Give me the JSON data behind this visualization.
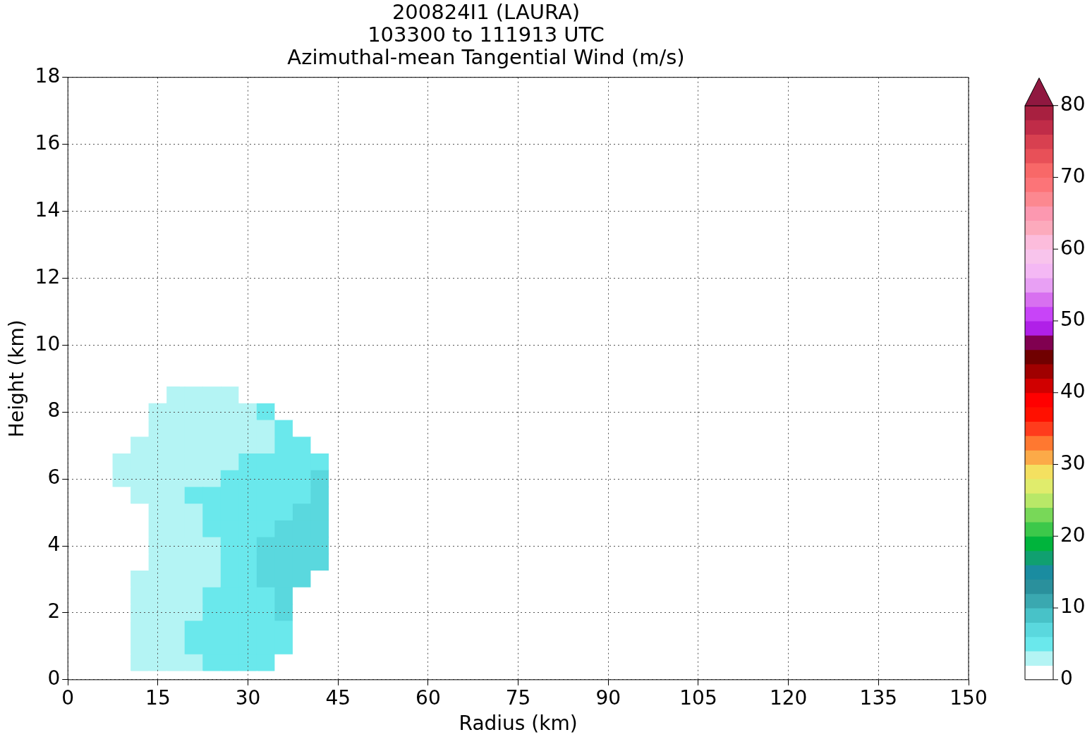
{
  "chart_data": {
    "type": "heatmap",
    "title": "200824I1 (LAURA)\n103300 to 111913 UTC\nAzimuthal-mean Tangential Wind (m/s)",
    "xlabel": "Radius (km)",
    "ylabel": "Height (km)",
    "grid": true,
    "clim": [
      0,
      80
    ],
    "cticks": [
      0,
      10,
      20,
      30,
      40,
      50,
      60,
      70,
      80
    ],
    "categories": [
      "0",
      null,
      null,
      null,
      null,
      "15",
      null,
      null,
      null,
      null,
      "30",
      null,
      null,
      null,
      null,
      "45",
      null,
      null,
      null,
      null,
      "60",
      null,
      null,
      null,
      null,
      "75",
      null,
      null,
      null,
      null,
      "90",
      null,
      null,
      null,
      null,
      "105",
      null,
      null,
      null,
      null,
      "120",
      null,
      null,
      null,
      null,
      "135",
      null,
      null,
      null,
      null,
      "150"
    ],
    "y_categories": [
      "18",
      null,
      null,
      null,
      "16",
      null,
      null,
      null,
      "14",
      null,
      null,
      null,
      "12",
      null,
      null,
      null,
      "10",
      null,
      null,
      null,
      "8",
      null,
      null,
      null,
      "6",
      null,
      null,
      null,
      "4",
      null,
      null,
      null,
      "2",
      null,
      null,
      null,
      "0"
    ],
    "cells": [
      [
        1,
        1,
        1,
        1,
        1,
        1,
        1,
        1,
        1,
        1,
        1,
        1,
        1,
        1,
        1,
        1,
        1,
        1,
        1,
        1,
        1,
        1,
        1,
        1,
        1,
        1,
        1,
        1,
        1,
        1,
        1,
        1,
        1,
        1,
        1,
        1,
        1,
        1,
        1,
        1,
        1,
        1,
        1,
        1,
        1,
        1,
        1,
        1,
        1,
        1,
        1
      ],
      [
        1,
        1,
        1,
        1,
        1,
        1,
        1,
        1,
        1,
        1,
        1,
        1,
        1,
        1,
        1,
        1,
        1,
        1,
        1,
        1,
        1,
        1,
        1,
        1,
        1,
        1,
        1,
        1,
        1,
        1,
        1,
        1,
        1,
        1,
        1,
        1,
        1,
        1,
        1,
        1,
        1,
        1,
        1,
        1,
        1,
        1,
        1,
        1,
        1,
        1,
        1
      ],
      [
        1,
        1,
        1,
        1,
        1,
        1,
        1,
        1,
        1,
        1,
        1,
        1,
        1,
        1,
        1,
        1,
        1,
        1,
        1,
        1,
        1,
        1,
        1,
        1,
        1,
        1,
        1,
        1,
        1,
        1,
        1,
        1,
        1,
        1,
        1,
        1,
        1,
        1,
        1,
        1,
        1,
        1,
        1,
        1,
        1,
        1,
        1,
        1,
        1,
        1,
        1
      ],
      [
        1,
        1,
        1,
        1,
        1,
        1,
        1,
        1,
        1,
        1,
        1,
        1,
        1,
        1,
        1,
        1,
        1,
        1,
        1,
        1,
        1,
        1,
        1,
        1,
        1,
        1,
        1,
        1,
        1,
        1,
        1,
        1,
        1,
        1,
        1,
        1,
        1,
        1,
        1,
        1,
        1,
        1,
        1,
        1,
        1,
        1,
        1,
        1,
        1,
        1,
        1
      ],
      [
        1,
        1,
        1,
        1,
        1,
        1,
        1,
        1,
        1,
        1,
        1,
        1,
        1,
        1,
        1,
        1,
        1,
        1,
        1,
        1,
        1,
        1,
        1,
        1,
        1,
        1,
        1,
        1,
        1,
        1,
        1,
        1,
        1,
        1,
        1,
        1,
        1,
        1,
        1,
        1,
        1,
        1,
        1,
        1,
        1,
        1,
        1,
        1,
        1,
        1,
        1
      ],
      [
        1,
        1,
        1,
        1,
        1,
        1,
        1,
        1,
        1,
        1,
        1,
        1,
        1,
        1,
        1,
        1,
        1,
        1,
        1,
        1,
        1,
        1,
        1,
        1,
        1,
        1,
        1,
        1,
        1,
        1,
        1,
        1,
        1,
        1,
        1,
        1,
        1,
        1,
        1,
        1,
        1,
        1,
        1,
        1,
        1,
        1,
        1,
        1,
        1,
        1,
        1
      ],
      [
        1,
        1,
        1,
        1,
        1,
        1,
        1,
        1,
        1,
        1,
        1,
        1,
        1,
        1,
        1,
        1,
        1,
        1,
        1,
        1,
        1,
        1,
        1,
        1,
        1,
        1,
        1,
        1,
        1,
        1,
        1,
        1,
        1,
        1,
        1,
        1,
        1,
        1,
        1,
        1,
        1,
        1,
        1,
        1,
        1,
        1,
        1,
        1,
        1,
        1,
        1
      ],
      [
        1,
        1,
        1,
        1,
        1,
        1,
        1,
        1,
        1,
        1,
        1,
        1,
        1,
        1,
        1,
        1,
        1,
        1,
        1,
        1,
        1,
        1,
        1,
        1,
        1,
        1,
        1,
        1,
        1,
        1,
        1,
        1,
        1,
        1,
        1,
        1,
        1,
        1,
        1,
        1,
        1,
        1,
        1,
        1,
        1,
        1,
        1,
        1,
        1,
        1,
        1
      ],
      [
        1,
        1,
        1,
        1,
        1,
        1,
        1,
        1,
        1,
        1,
        1,
        1,
        1,
        1,
        1,
        1,
        1,
        1,
        1,
        1,
        1,
        1,
        1,
        1,
        1,
        1,
        1,
        1,
        1,
        1,
        1,
        1,
        1,
        1,
        1,
        1,
        1,
        1,
        1,
        1,
        1,
        1,
        1,
        1,
        1,
        1,
        1,
        1,
        1,
        1,
        1
      ],
      [
        1,
        1,
        1,
        1,
        1,
        1,
        1,
        1,
        1,
        1,
        1,
        1,
        1,
        1,
        1,
        1,
        1,
        1,
        1,
        1,
        1,
        1,
        1,
        1,
        1,
        1,
        1,
        1,
        1,
        1,
        1,
        1,
        1,
        1,
        1,
        1,
        1,
        1,
        1,
        1,
        1,
        1,
        1,
        1,
        1,
        1,
        1,
        1,
        1,
        1,
        1
      ],
      [
        1,
        1,
        1,
        1,
        1,
        1,
        1,
        1,
        1,
        1,
        1,
        1,
        1,
        1,
        1,
        1,
        1,
        1,
        1,
        1,
        1,
        1,
        1,
        1,
        1,
        1,
        1,
        1,
        1,
        1,
        1,
        1,
        1,
        1,
        1,
        1,
        1,
        1,
        1,
        1,
        1,
        1,
        1,
        1,
        1,
        1,
        1,
        1,
        1,
        1,
        1
      ],
      [
        1,
        1,
        1,
        1,
        1,
        1,
        1,
        1,
        1,
        1,
        1,
        1,
        1,
        1,
        1,
        1,
        1,
        1,
        1,
        1,
        1,
        1,
        1,
        1,
        1,
        1,
        1,
        1,
        1,
        1,
        1,
        1,
        1,
        1,
        1,
        1,
        1,
        1,
        1,
        1,
        1,
        1,
        1,
        1,
        1,
        1,
        1,
        1,
        1,
        1,
        1
      ],
      [
        1,
        1,
        1,
        1,
        1,
        1,
        1,
        1,
        1,
        1,
        1,
        1,
        1,
        1,
        1,
        1,
        1,
        1,
        1,
        1,
        1,
        1,
        1,
        1,
        1,
        1,
        1,
        1,
        1,
        1,
        1,
        1,
        1,
        1,
        1,
        1,
        1,
        1,
        1,
        1,
        1,
        1,
        1,
        1,
        1,
        1,
        1,
        1,
        1,
        1,
        1
      ],
      [
        1,
        1,
        1,
        1,
        1,
        1,
        1,
        1,
        1,
        1,
        1,
        1,
        1,
        1,
        1,
        1,
        1,
        1,
        1,
        1,
        1,
        1,
        1,
        1,
        1,
        1,
        1,
        1,
        1,
        1,
        1,
        1,
        1,
        1,
        1,
        1,
        1,
        1,
        1,
        1,
        1,
        1,
        1,
        1,
        1,
        1,
        1,
        1,
        1,
        1,
        1
      ],
      [
        1,
        1,
        1,
        1,
        1,
        1,
        1,
        1,
        1,
        1,
        1,
        1,
        1,
        1,
        1,
        1,
        1,
        1,
        1,
        1,
        1,
        1,
        1,
        1,
        1,
        1,
        1,
        1,
        1,
        1,
        1,
        1,
        1,
        1,
        1,
        1,
        1,
        1,
        1,
        1,
        1,
        1,
        1,
        1,
        1,
        1,
        1,
        1,
        1,
        1,
        1
      ],
      [
        1,
        1,
        1,
        1,
        1,
        1,
        1,
        1,
        1,
        1,
        1,
        1,
        1,
        1,
        1,
        1,
        1,
        1,
        1,
        1,
        1,
        1,
        1,
        1,
        1,
        1,
        1,
        1,
        1,
        1,
        1,
        1,
        1,
        1,
        1,
        1,
        1,
        1,
        1,
        1,
        1,
        1,
        1,
        1,
        1,
        1,
        1,
        1,
        1,
        1,
        1
      ],
      [
        1,
        1,
        1,
        1,
        1,
        1,
        1,
        1,
        1,
        1,
        1,
        1,
        1,
        1,
        1,
        1,
        1,
        1,
        1,
        1,
        1,
        1,
        1,
        1,
        1,
        1,
        1,
        1,
        1,
        1,
        1,
        1,
        1,
        1,
        1,
        1,
        1,
        1,
        1,
        1,
        1,
        1,
        1,
        1,
        1,
        1,
        1,
        1,
        1,
        1,
        1
      ],
      [
        1,
        1,
        1,
        1,
        1,
        1,
        1,
        1,
        1,
        1,
        1,
        1,
        1,
        1,
        1,
        1,
        1,
        1,
        1,
        1,
        1,
        1,
        1,
        1,
        1,
        1,
        1,
        1,
        1,
        1,
        1,
        1,
        1,
        1,
        1,
        1,
        1,
        1,
        1,
        1,
        1,
        1,
        1,
        1,
        1,
        1,
        1,
        1,
        1,
        1,
        1
      ],
      [
        1,
        1,
        1,
        1,
        1,
        1,
        1,
        1,
        1,
        1,
        1,
        1,
        1,
        1,
        1,
        1,
        1,
        1,
        1,
        1,
        1,
        1,
        1,
        1,
        1,
        1,
        1,
        1,
        1,
        1,
        1,
        1,
        1,
        1,
        1,
        1,
        1,
        1,
        1,
        1,
        1,
        1,
        1,
        1,
        1,
        1,
        1,
        1,
        1,
        1,
        1
      ],
      [
        1,
        1,
        1,
        1,
        1,
        1,
        3,
        3,
        3,
        3,
        1,
        1,
        1,
        1,
        1,
        1,
        1,
        1,
        1,
        1,
        1,
        1,
        1,
        1,
        1,
        1,
        1,
        1,
        1,
        1,
        1,
        1,
        1,
        1,
        1,
        1,
        1,
        1,
        1,
        1,
        1,
        1,
        1,
        1,
        1,
        1,
        1,
        1,
        1,
        1,
        1
      ],
      [
        1,
        1,
        1,
        1,
        1,
        3,
        3,
        3,
        3,
        3,
        3,
        5,
        1,
        1,
        1,
        1,
        1,
        1,
        1,
        1,
        1,
        1,
        1,
        1,
        1,
        1,
        1,
        1,
        1,
        1,
        1,
        1,
        1,
        1,
        1,
        1,
        1,
        1,
        1,
        1,
        1,
        1,
        1,
        1,
        1,
        1,
        1,
        1,
        1,
        1,
        1
      ],
      [
        1,
        1,
        1,
        1,
        1,
        3,
        3,
        3,
        3,
        3,
        3,
        3,
        5,
        1,
        1,
        1,
        1,
        1,
        1,
        1,
        1,
        1,
        1,
        1,
        1,
        1,
        1,
        1,
        1,
        1,
        1,
        1,
        1,
        1,
        1,
        1,
        1,
        1,
        1,
        1,
        1,
        1,
        1,
        1,
        1,
        1,
        1,
        1,
        1,
        1,
        1
      ],
      [
        1,
        1,
        1,
        1,
        3,
        3,
        3,
        3,
        3,
        3,
        3,
        3,
        5,
        5,
        1,
        1,
        1,
        1,
        1,
        1,
        1,
        1,
        1,
        1,
        1,
        1,
        1,
        1,
        1,
        1,
        1,
        1,
        1,
        1,
        1,
        1,
        1,
        1,
        1,
        1,
        1,
        1,
        1,
        1,
        1,
        1,
        1,
        1,
        1,
        1,
        1
      ],
      [
        1,
        1,
        1,
        3,
        3,
        3,
        3,
        3,
        3,
        3,
        5,
        5,
        5,
        5,
        5,
        1,
        1,
        1,
        1,
        1,
        1,
        1,
        1,
        1,
        1,
        1,
        1,
        1,
        1,
        1,
        1,
        1,
        1,
        1,
        1,
        1,
        1,
        1,
        1,
        1,
        1,
        1,
        1,
        1,
        1,
        1,
        1,
        1,
        1,
        1,
        1
      ],
      [
        1,
        1,
        1,
        3,
        3,
        3,
        3,
        3,
        3,
        5,
        5,
        5,
        5,
        5,
        7,
        1,
        1,
        1,
        1,
        1,
        1,
        1,
        1,
        1,
        1,
        1,
        1,
        1,
        1,
        1,
        1,
        1,
        1,
        1,
        1,
        1,
        1,
        1,
        1,
        1,
        1,
        1,
        1,
        1,
        1,
        1,
        1,
        1,
        1,
        1,
        1
      ],
      [
        1,
        1,
        1,
        1,
        3,
        3,
        3,
        5,
        5,
        5,
        5,
        5,
        5,
        5,
        7,
        1,
        1,
        1,
        1,
        1,
        1,
        1,
        1,
        1,
        1,
        1,
        1,
        1,
        1,
        1,
        1,
        1,
        1,
        1,
        1,
        1,
        1,
        1,
        1,
        1,
        1,
        1,
        1,
        1,
        1,
        1,
        1,
        1,
        1,
        1,
        1
      ],
      [
        1,
        1,
        1,
        1,
        1,
        3,
        3,
        3,
        5,
        5,
        5,
        5,
        5,
        7,
        7,
        1,
        1,
        1,
        1,
        1,
        1,
        1,
        1,
        1,
        1,
        1,
        1,
        1,
        1,
        1,
        1,
        1,
        1,
        1,
        1,
        1,
        1,
        1,
        1,
        1,
        1,
        1,
        1,
        1,
        1,
        1,
        1,
        1,
        1,
        1,
        1
      ],
      [
        1,
        1,
        1,
        1,
        1,
        3,
        3,
        3,
        5,
        5,
        5,
        5,
        7,
        7,
        7,
        1,
        1,
        1,
        1,
        1,
        1,
        1,
        1,
        1,
        1,
        1,
        1,
        1,
        1,
        1,
        1,
        1,
        1,
        1,
        1,
        1,
        1,
        1,
        1,
        1,
        1,
        1,
        1,
        1,
        1,
        1,
        1,
        1,
        1,
        1,
        1
      ],
      [
        1,
        1,
        1,
        1,
        1,
        3,
        3,
        3,
        3,
        5,
        5,
        7,
        7,
        7,
        7,
        1,
        1,
        1,
        1,
        1,
        1,
        1,
        1,
        1,
        1,
        1,
        1,
        1,
        1,
        1,
        1,
        1,
        1,
        1,
        1,
        1,
        1,
        1,
        1,
        1,
        1,
        1,
        1,
        1,
        1,
        1,
        1,
        1,
        1,
        1,
        1
      ],
      [
        1,
        1,
        1,
        1,
        1,
        3,
        3,
        3,
        3,
        5,
        5,
        7,
        7,
        7,
        7,
        1,
        1,
        1,
        1,
        1,
        1,
        1,
        1,
        1,
        1,
        1,
        1,
        1,
        1,
        1,
        1,
        1,
        1,
        1,
        1,
        1,
        1,
        1,
        1,
        1,
        1,
        1,
        1,
        1,
        1,
        1,
        1,
        1,
        1,
        1,
        1
      ],
      [
        1,
        1,
        1,
        1,
        3,
        3,
        3,
        3,
        3,
        5,
        5,
        7,
        7,
        7,
        1,
        1,
        1,
        1,
        1,
        1,
        1,
        1,
        1,
        1,
        1,
        1,
        1,
        1,
        1,
        1,
        1,
        1,
        1,
        1,
        1,
        1,
        1,
        1,
        1,
        1,
        1,
        1,
        1,
        1,
        1,
        1,
        1,
        1,
        1,
        1,
        1
      ],
      [
        1,
        1,
        1,
        1,
        3,
        3,
        3,
        3,
        5,
        5,
        5,
        5,
        7,
        1,
        1,
        1,
        1,
        1,
        1,
        1,
        1,
        1,
        1,
        1,
        1,
        1,
        1,
        1,
        1,
        1,
        1,
        1,
        1,
        1,
        1,
        1,
        1,
        1,
        1,
        1,
        1,
        1,
        1,
        1,
        1,
        1,
        1,
        1,
        1,
        1,
        1
      ],
      [
        1,
        1,
        1,
        1,
        3,
        3,
        3,
        3,
        5,
        5,
        5,
        5,
        7,
        1,
        1,
        1,
        1,
        1,
        1,
        1,
        1,
        1,
        1,
        1,
        1,
        1,
        1,
        1,
        1,
        1,
        1,
        1,
        1,
        1,
        1,
        1,
        1,
        1,
        1,
        1,
        1,
        1,
        1,
        1,
        1,
        1,
        1,
        1,
        1,
        1,
        1
      ],
      [
        1,
        1,
        1,
        1,
        3,
        3,
        3,
        5,
        5,
        5,
        5,
        5,
        5,
        1,
        1,
        1,
        1,
        1,
        1,
        1,
        1,
        1,
        1,
        1,
        1,
        1,
        1,
        1,
        1,
        1,
        1,
        1,
        1,
        1,
        1,
        1,
        1,
        1,
        1,
        1,
        1,
        1,
        1,
        1,
        1,
        1,
        1,
        1,
        1,
        1,
        1
      ],
      [
        1,
        1,
        1,
        1,
        3,
        3,
        3,
        5,
        5,
        5,
        5,
        5,
        5,
        1,
        1,
        1,
        1,
        1,
        1,
        1,
        1,
        1,
        1,
        1,
        1,
        1,
        1,
        1,
        1,
        1,
        1,
        1,
        1,
        1,
        1,
        1,
        1,
        1,
        1,
        1,
        1,
        1,
        1,
        1,
        1,
        1,
        1,
        1,
        1,
        1,
        1
      ],
      [
        1,
        1,
        1,
        1,
        3,
        3,
        3,
        3,
        5,
        5,
        5,
        5,
        1,
        1,
        1,
        1,
        1,
        1,
        1,
        1,
        1,
        1,
        1,
        1,
        1,
        1,
        1,
        1,
        1,
        1,
        1,
        1,
        1,
        1,
        1,
        1,
        1,
        1,
        1,
        1,
        1,
        1,
        1,
        1,
        1,
        1,
        1,
        1,
        1,
        1,
        1
      ],
      [
        1,
        1,
        1,
        1,
        1,
        1,
        1,
        1,
        1,
        1,
        1,
        1,
        1,
        1,
        1,
        1,
        1,
        1,
        1,
        1,
        1,
        1,
        1,
        1,
        1,
        1,
        1,
        1,
        1,
        1,
        1,
        1,
        1,
        1,
        1,
        1,
        1,
        1,
        1,
        1,
        1,
        1,
        1,
        1,
        1,
        1,
        1,
        1,
        1,
        1,
        1
      ]
    ]
  }
}
